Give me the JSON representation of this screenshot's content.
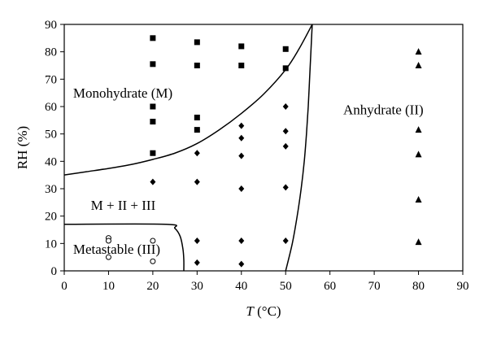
{
  "chart_data": {
    "type": "scatter",
    "xlabel_italic": "T",
    "xlabel_rest": " (°C)",
    "ylabel": "RH (%)",
    "xlim": [
      0,
      90
    ],
    "ylim": [
      0,
      90
    ],
    "xticks": [
      0,
      10,
      20,
      30,
      40,
      50,
      60,
      70,
      80,
      90
    ],
    "yticks": [
      0,
      10,
      20,
      30,
      40,
      50,
      60,
      70,
      80,
      90
    ],
    "grid": false,
    "regions": [
      {
        "label": "Monohydrate (M)",
        "x": 2,
        "y": 65
      },
      {
        "label": "Anhydrate (II)",
        "x": 63,
        "y": 59
      },
      {
        "label": "M + II + III",
        "x": 6,
        "y": 24
      },
      {
        "label": "Metastable (III)",
        "x": 2,
        "y": 8
      }
    ],
    "series": [
      {
        "marker": "square",
        "points": [
          [
            20,
            85
          ],
          [
            20,
            75.5
          ],
          [
            20,
            60
          ],
          [
            20,
            54.5
          ],
          [
            20,
            43
          ],
          [
            30,
            83.5
          ],
          [
            30,
            75
          ],
          [
            30,
            56
          ],
          [
            30,
            51.5
          ],
          [
            40,
            82
          ],
          [
            40,
            75
          ],
          [
            50,
            81
          ],
          [
            50,
            74
          ]
        ]
      },
      {
        "marker": "diamond",
        "points": [
          [
            20,
            32.5
          ],
          [
            30,
            43
          ],
          [
            30,
            32.5
          ],
          [
            30,
            11
          ],
          [
            30,
            3
          ],
          [
            40,
            53
          ],
          [
            40,
            48.5
          ],
          [
            40,
            42
          ],
          [
            40,
            30
          ],
          [
            40,
            11
          ],
          [
            40,
            2.5
          ],
          [
            50,
            60
          ],
          [
            50,
            51
          ],
          [
            50,
            45.5
          ],
          [
            50,
            30.5
          ],
          [
            50,
            11
          ]
        ]
      },
      {
        "marker": "triangle",
        "points": [
          [
            80,
            80
          ],
          [
            80,
            75
          ],
          [
            80,
            51.5
          ],
          [
            80,
            42.5
          ],
          [
            80,
            26
          ],
          [
            80,
            10.5
          ]
        ]
      },
      {
        "marker": "circle",
        "points": [
          [
            10,
            12
          ],
          [
            10,
            11
          ],
          [
            10,
            5
          ],
          [
            20,
            11
          ],
          [
            20,
            3.5
          ]
        ]
      }
    ],
    "boundaries": [
      {
        "name": "monohydrate-boundary",
        "points": [
          [
            0,
            35
          ],
          [
            5,
            36.2
          ],
          [
            10,
            37.4
          ],
          [
            15,
            38.8
          ],
          [
            20,
            40.7
          ],
          [
            25,
            43
          ],
          [
            30,
            46.5
          ],
          [
            35,
            51.5
          ],
          [
            40,
            57.5
          ],
          [
            45,
            64.5
          ],
          [
            50,
            73.5
          ],
          [
            53,
            81
          ],
          [
            56,
            90
          ]
        ]
      },
      {
        "name": "anhydrate-boundary",
        "points": [
          [
            50,
            0
          ],
          [
            51.5,
            10
          ],
          [
            52.6,
            20
          ],
          [
            53.5,
            30
          ],
          [
            54.2,
            40
          ],
          [
            54.7,
            50
          ],
          [
            55.1,
            60
          ],
          [
            55.4,
            70
          ],
          [
            55.7,
            80
          ],
          [
            56,
            90
          ]
        ]
      },
      {
        "name": "metastable-boundary",
        "points": [
          [
            0,
            17
          ],
          [
            23,
            17
          ],
          [
            25,
            15.5
          ],
          [
            26.2,
            12.5
          ],
          [
            26.8,
            8
          ],
          [
            27,
            4
          ],
          [
            27,
            0
          ]
        ]
      }
    ]
  }
}
